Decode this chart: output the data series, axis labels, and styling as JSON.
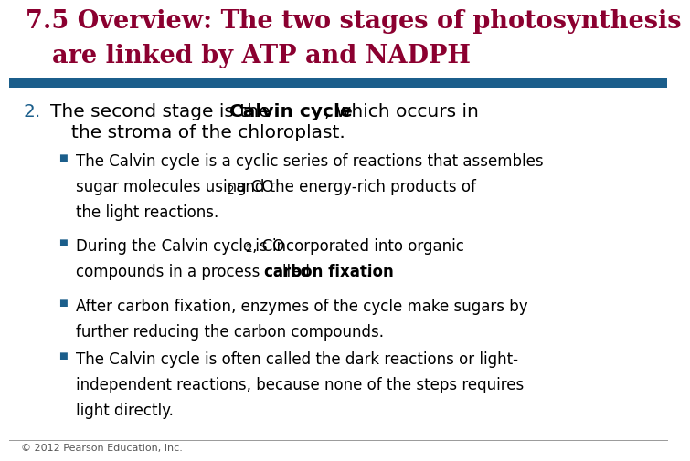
{
  "title_line1": "7.5 Overview: The two stages of photosynthesis",
  "title_line2": "are linked by ATP and NADPH",
  "title_color": "#8B0030",
  "title_fontsize": 19.5,
  "blue_bar_color": "#1B5E8B",
  "section_number_color": "#1B5E8B",
  "bullet_color": "#1B5E8B",
  "text_color": "#000000",
  "bg_color": "#FFFFFF",
  "footer_text": "© 2012 Pearson Education, Inc.",
  "footer_fontsize": 8
}
